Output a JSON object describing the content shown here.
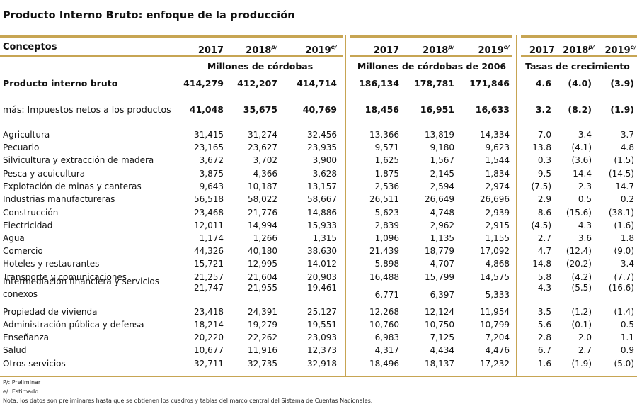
{
  "title": "Producto Interno Bruto: enfoque de la producción",
  "header": {
    "concepts": "Conceptos",
    "g1": [
      {
        "y": "2017",
        "s": ""
      },
      {
        "y": "2018",
        "s": "p/"
      },
      {
        "y": "2019",
        "s": "e/"
      }
    ],
    "g2": [
      {
        "y": "2017",
        "s": ""
      },
      {
        "y": "2018",
        "s": "p/"
      },
      {
        "y": "2019",
        "s": "e/"
      }
    ],
    "g3": [
      {
        "y": "2017",
        "s": ""
      },
      {
        "y": "2018",
        "s": "p/"
      },
      {
        "y": "2019",
        "s": "e/"
      }
    ]
  },
  "units": {
    "g1": "Millones de córdobas",
    "g2": "Millones de córdobas de 2006",
    "g3": "Tasas de crecimiento"
  },
  "rows": [
    {
      "label": "Producto interno bruto",
      "vals": [
        "414,279",
        "412,207",
        "414,714",
        "186,134",
        "178,781",
        "171,846",
        "4.6",
        "(4.0)",
        "(3.9)"
      ],
      "bold": true
    },
    {
      "label": "más: Impuestos netos a los productos",
      "vals": [
        "41,048",
        "35,675",
        "40,769",
        "18,456",
        "16,951",
        "16,633",
        "3.2",
        "(8.2)",
        "(1.9)"
      ],
      "semibold": true
    },
    {
      "label": "Agricultura",
      "vals": [
        "31,415",
        "31,274",
        "32,456",
        "13,366",
        "13,819",
        "14,334",
        "7.0",
        "3.4",
        "3.7"
      ]
    },
    {
      "label": "Pecuario",
      "vals": [
        "23,165",
        "23,627",
        "23,935",
        "9,571",
        "9,180",
        "9,623",
        "13.8",
        "(4.1)",
        "4.8"
      ]
    },
    {
      "label": "Silvicultura y extracción de madera",
      "vals": [
        "3,672",
        "3,702",
        "3,900",
        "1,625",
        "1,567",
        "1,544",
        "0.3",
        "(3.6)",
        "(1.5)"
      ]
    },
    {
      "label": "Pesca y acuicultura",
      "vals": [
        "3,875",
        "4,366",
        "3,628",
        "1,875",
        "2,145",
        "1,834",
        "9.5",
        "14.4",
        "(14.5)"
      ]
    },
    {
      "label": "Explotación de minas y canteras",
      "vals": [
        "9,643",
        "10,187",
        "13,157",
        "2,536",
        "2,594",
        "2,974",
        "(7.5)",
        "2.3",
        "14.7"
      ]
    },
    {
      "label": "Industrias manufactureras",
      "vals": [
        "56,518",
        "58,022",
        "58,667",
        "26,511",
        "26,649",
        "26,696",
        "2.9",
        "0.5",
        "0.2"
      ]
    },
    {
      "label": "Construcción",
      "vals": [
        "23,468",
        "21,776",
        "14,886",
        "5,623",
        "4,748",
        "2,939",
        "8.6",
        "(15.6)",
        "(38.1)"
      ]
    },
    {
      "label": "Electricidad",
      "vals": [
        "12,011",
        "14,994",
        "15,933",
        "2,839",
        "2,962",
        "2,915",
        "(4.5)",
        "4.3",
        "(1.6)"
      ]
    },
    {
      "label": "Agua",
      "vals": [
        "1,174",
        "1,266",
        "1,315",
        "1,096",
        "1,135",
        "1,155",
        "2.7",
        "3.6",
        "1.8"
      ]
    },
    {
      "label": "Comercio",
      "vals": [
        "44,326",
        "40,180",
        "38,630",
        "21,439",
        "18,779",
        "17,092",
        "4.7",
        "(12.4)",
        "(9.0)"
      ]
    },
    {
      "label": "Hoteles y restaurantes",
      "vals": [
        "15,721",
        "12,995",
        "14,012",
        "5,898",
        "4,707",
        "4,868",
        "14.8",
        "(20.2)",
        "3.4"
      ]
    },
    {
      "label": "Transporte y comunicaciones",
      "vals": [
        "21,257",
        "21,604",
        "20,903",
        "16,488",
        "15,799",
        "14,575",
        "5.8",
        "(4.2)",
        "(7.7)"
      ]
    },
    {
      "label": "Intermediación financiera y servicios",
      "label2": "conexos",
      "vals": [
        "21,747",
        "21,955",
        "19,461",
        "6,771",
        "6,397",
        "5,333",
        "4.3",
        "(5.5)",
        "(16.6)"
      ]
    },
    {
      "label": "Propiedad de vivienda",
      "vals": [
        "23,418",
        "24,391",
        "25,127",
        "12,268",
        "12,124",
        "11,954",
        "3.5",
        "(1.2)",
        "(1.4)"
      ]
    },
    {
      "label": "Administración pública y defensa",
      "vals": [
        "18,214",
        "19,279",
        "19,551",
        "10,760",
        "10,750",
        "10,799",
        "5.6",
        "(0.1)",
        "0.5"
      ]
    },
    {
      "label": "Enseñanza",
      "vals": [
        "20,220",
        "22,262",
        "23,093",
        "6,983",
        "7,125",
        "7,204",
        "2.8",
        "2.0",
        "1.1"
      ]
    },
    {
      "label": "Salud",
      "vals": [
        "10,677",
        "11,916",
        "12,373",
        "4,317",
        "4,434",
        "4,476",
        "6.7",
        "2.7",
        "0.9"
      ]
    },
    {
      "label": "Otros servicios",
      "vals": [
        "32,711",
        "32,735",
        "32,918",
        "18,496",
        "18,137",
        "17,232",
        "1.6",
        "(1.9)",
        "(5.0)"
      ]
    }
  ],
  "notes": [
    "P/: Preliminar",
    "e/: Estimado",
    "Nota: los datos son preliminares hasta que se obtienen los cuadros y tablas del marco central del Sistema de Cuentas Nacionales."
  ]
}
